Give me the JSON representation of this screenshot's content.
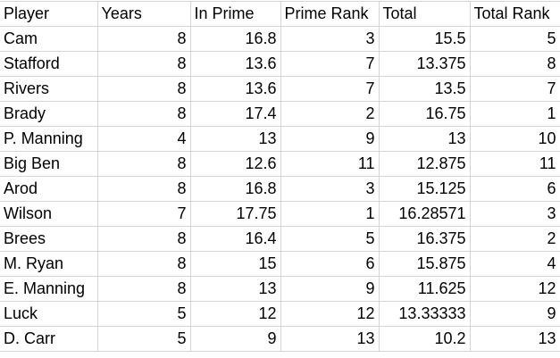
{
  "sheet": {
    "headers": [
      "Player",
      "Years",
      "In Prime",
      "Prime Rank",
      "Total",
      "Total Rank"
    ],
    "rows": [
      [
        "Cam",
        "8",
        "16.8",
        "3",
        "15.5",
        "5"
      ],
      [
        "Stafford",
        "8",
        "13.6",
        "7",
        "13.375",
        "8"
      ],
      [
        "Rivers",
        "8",
        "13.6",
        "7",
        "13.5",
        "7"
      ],
      [
        "Brady",
        "8",
        "17.4",
        "2",
        "16.75",
        "1"
      ],
      [
        "P. Manning",
        "4",
        "13",
        "9",
        "13",
        "10"
      ],
      [
        "Big Ben",
        "8",
        "12.6",
        "11",
        "12.875",
        "11"
      ],
      [
        "Arod",
        "8",
        "16.8",
        "3",
        "15.125",
        "6"
      ],
      [
        "Wilson",
        "7",
        "17.75",
        "1",
        "16.28571",
        "3"
      ],
      [
        "Brees",
        "8",
        "16.4",
        "5",
        "16.375",
        "2"
      ],
      [
        "M. Ryan",
        "8",
        "15",
        "6",
        "15.875",
        "4"
      ],
      [
        "E. Manning",
        "8",
        "13",
        "9",
        "11.625",
        "12"
      ],
      [
        "Luck",
        "5",
        "12",
        "12",
        "13.33333",
        "9"
      ],
      [
        "D. Carr",
        "5",
        "9",
        "13",
        "10.2",
        "13"
      ]
    ]
  }
}
